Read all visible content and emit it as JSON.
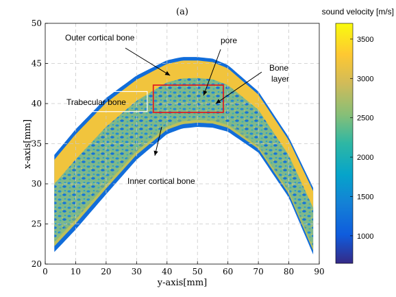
{
  "chart_data": {
    "type": "heatmap",
    "title": "(a)",
    "xlabel": "y-axis[mm]",
    "ylabel": "x-axis[mm]",
    "xlim": [
      0,
      90
    ],
    "ylim": [
      20,
      50
    ],
    "xticks": [
      0,
      10,
      20,
      30,
      40,
      50,
      60,
      70,
      80,
      90
    ],
    "yticks": [
      20,
      25,
      30,
      35,
      40,
      45,
      50
    ],
    "grid": true,
    "colorbar": {
      "label": "sound velocity [m/s]",
      "range": [
        650,
        3700
      ],
      "ticks": [
        1000,
        1500,
        2000,
        2500,
        3000,
        3500
      ],
      "colormap": "parula"
    },
    "annotations": [
      {
        "text": "Outer cortical bone",
        "arrow_to": [
          41,
          43.5
        ]
      },
      {
        "text": "pore",
        "arrow_to": [
          52,
          41
        ]
      },
      {
        "text": "Bone layer",
        "arrow_to": [
          56,
          40
        ]
      },
      {
        "text": "Trabecular bone",
        "arrow_to": null
      },
      {
        "text": "Inner cortical bone",
        "arrow_to": [
          36,
          33.5
        ]
      }
    ],
    "highlight_box": {
      "x": [
        35.5,
        58.5
      ],
      "y": [
        38.9,
        42.3
      ],
      "color": "#e02020"
    },
    "label_box": {
      "x": [
        10,
        33.5
      ],
      "y": [
        39,
        41.5
      ],
      "color": "#ffffff"
    },
    "bone_profile": {
      "y_mm": [
        3,
        10,
        20,
        30,
        40,
        45,
        50,
        55,
        60,
        70,
        80,
        88
      ],
      "outer_edge_x_mm": [
        33.6,
        36.8,
        40.7,
        43.5,
        45.4,
        45.8,
        45.8,
        45.6,
        44.8,
        41.5,
        35.8,
        29.5
      ],
      "inner_edge_x_mm": [
        21.5,
        24.3,
        28.7,
        33.0,
        36.2,
        36.9,
        37.1,
        37.0,
        36.5,
        33.9,
        28.3,
        21.2
      ]
    },
    "region_velocity_m_s": {
      "outer_cortical": 3200,
      "trabecular": 2300,
      "pores": 1300,
      "rim": 1200
    }
  }
}
